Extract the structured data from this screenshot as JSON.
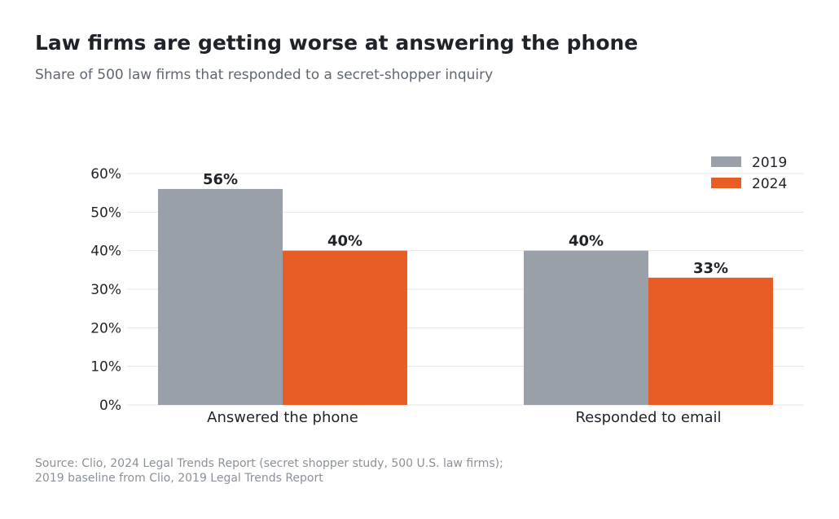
{
  "title": "Law firms are getting worse at answering the phone",
  "subtitle": "Share of 500 law firms that responded to a secret-shopper inquiry",
  "source": {
    "line1": "Source: Clio, 2024 Legal Trends Report (secret shopper study, 500 U.S. law firms);",
    "line2": "2019 baseline from Clio, 2019 Legal Trends Report"
  },
  "colors": {
    "series_2019": "#9aa0aa",
    "series_2024": "#e85d26",
    "grid": "#e6e6e6",
    "text": "#1f2329"
  },
  "chart_data": {
    "type": "bar",
    "categories": [
      "Answered the phone",
      "Responded to email"
    ],
    "series": [
      {
        "name": "2019",
        "values": [
          56,
          40
        ],
        "labels": [
          "56%",
          "40%"
        ]
      },
      {
        "name": "2024",
        "values": [
          40,
          33
        ],
        "labels": [
          "40%",
          "33%"
        ]
      }
    ],
    "ylim": [
      0,
      60
    ],
    "yticks": [
      0,
      10,
      20,
      30,
      40,
      50,
      60
    ],
    "ytick_labels": [
      "0%",
      "10%",
      "20%",
      "30%",
      "40%",
      "50%",
      "60%"
    ],
    "grid": true,
    "legend": "top-right",
    "xlabel": "",
    "ylabel": ""
  }
}
